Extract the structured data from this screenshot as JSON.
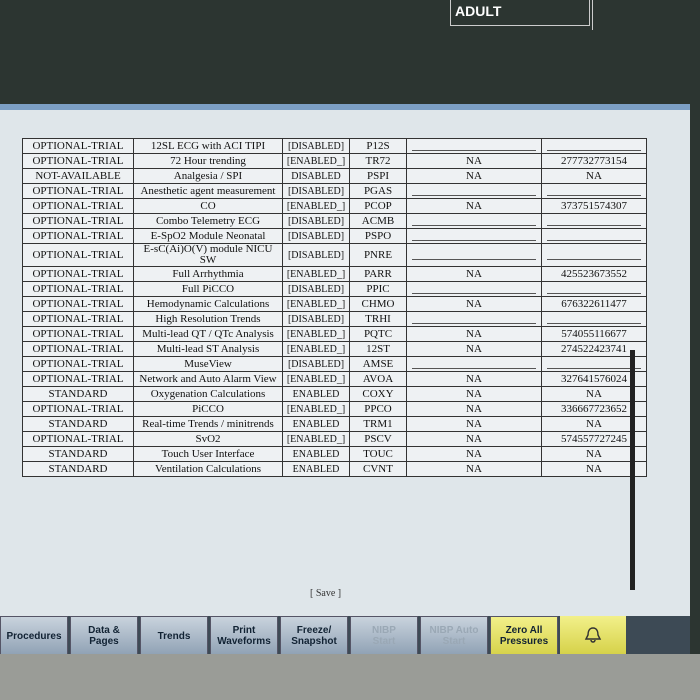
{
  "header": {
    "patient_mode": "ADULT"
  },
  "table": {
    "rows": [
      {
        "status": "OPTIONAL-TRIAL",
        "option": "12SL ECG with ACI TIPI",
        "state": "[DISABLED]",
        "code": "P12S"
      },
      {
        "status": "OPTIONAL-TRIAL",
        "option": "72 Hour trending",
        "state": "[ENABLED_]",
        "code": "TR72",
        "license": "NA",
        "key": "277732773154"
      },
      {
        "status": "NOT-AVAILABLE",
        "option": "Analgesia / SPI",
        "state": "DISABLED",
        "code": "PSPI",
        "license": "NA",
        "key": "NA"
      },
      {
        "status": "OPTIONAL-TRIAL",
        "option": "Anesthetic agent measurement",
        "state": "[DISABLED]",
        "code": "PGAS"
      },
      {
        "status": "OPTIONAL-TRIAL",
        "option": "CO",
        "state": "[ENABLED_]",
        "code": "PCOP",
        "license": "NA",
        "key": "373751574307"
      },
      {
        "status": "OPTIONAL-TRIAL",
        "option": "Combo Telemetry ECG",
        "state": "[DISABLED]",
        "code": "ACMB"
      },
      {
        "status": "OPTIONAL-TRIAL",
        "option": "E-SpO2 Module Neonatal",
        "state": "[DISABLED]",
        "code": "PSPO"
      },
      {
        "status": "OPTIONAL-TRIAL",
        "option": "E-sC(Ai)O(V) module NICU SW",
        "state": "[DISABLED]",
        "code": "PNRE"
      },
      {
        "status": "OPTIONAL-TRIAL",
        "option": "Full Arrhythmia",
        "state": "[ENABLED_]",
        "code": "PARR",
        "license": "NA",
        "key": "425523673552"
      },
      {
        "status": "OPTIONAL-TRIAL",
        "option": "Full PiCCO",
        "state": "[DISABLED]",
        "code": "PPIC"
      },
      {
        "status": "OPTIONAL-TRIAL",
        "option": "Hemodynamic Calculations",
        "state": "[ENABLED_]",
        "code": "CHMO",
        "license": "NA",
        "key": "676322611477"
      },
      {
        "status": "OPTIONAL-TRIAL",
        "option": "High Resolution Trends",
        "state": "[DISABLED]",
        "code": "TRHI"
      },
      {
        "status": "OPTIONAL-TRIAL",
        "option": "Multi-lead QT / QTc Analysis",
        "state": "[ENABLED_]",
        "code": "PQTC",
        "license": "NA",
        "key": "574055116677"
      },
      {
        "status": "OPTIONAL-TRIAL",
        "option": "Multi-lead ST Analysis",
        "state": "[ENABLED_]",
        "code": "12ST",
        "license": "NA",
        "key": "274522423741"
      },
      {
        "status": "OPTIONAL-TRIAL",
        "option": "MuseView",
        "state": "[DISABLED]",
        "code": "AMSE"
      },
      {
        "status": "OPTIONAL-TRIAL",
        "option": "Network and Auto Alarm View",
        "state": "[ENABLED_]",
        "code": "AVOA",
        "license": "NA",
        "key": "327641576024"
      },
      {
        "status": "STANDARD",
        "option": "Oxygenation Calculations",
        "state": "ENABLED",
        "code": "COXY",
        "license": "NA",
        "key": "NA"
      },
      {
        "status": "OPTIONAL-TRIAL",
        "option": "PiCCO",
        "state": "[ENABLED_]",
        "code": "PPCO",
        "license": "NA",
        "key": "336667723652"
      },
      {
        "status": "STANDARD",
        "option": "Real-time Trends / minitrends",
        "state": "ENABLED",
        "code": "TRM1",
        "license": "NA",
        "key": "NA"
      },
      {
        "status": "OPTIONAL-TRIAL",
        "option": "SvO2",
        "state": "[ENABLED_]",
        "code": "PSCV",
        "license": "NA",
        "key": "574557727245"
      },
      {
        "status": "STANDARD",
        "option": "Touch User Interface",
        "state": "ENABLED",
        "code": "TOUC",
        "license": "NA",
        "key": "NA"
      },
      {
        "status": "STANDARD",
        "option": "Ventilation Calculations",
        "state": "ENABLED",
        "code": "CVNT",
        "license": "NA",
        "key": "NA"
      }
    ]
  },
  "save": "[ Save ]",
  "buttons": [
    {
      "label": "Procedures"
    },
    {
      "label": "Data &\nPages"
    },
    {
      "label": "Trends"
    },
    {
      "label": "Print\nWaveforms"
    },
    {
      "label": "Freeze/\nSnapshot"
    },
    {
      "label": "NIBP\nStart",
      "disabled": true
    },
    {
      "label": "NIBP Auto\nStart",
      "disabled": true
    },
    {
      "label": "Zero All\nPressures",
      "highlight": true
    }
  ]
}
